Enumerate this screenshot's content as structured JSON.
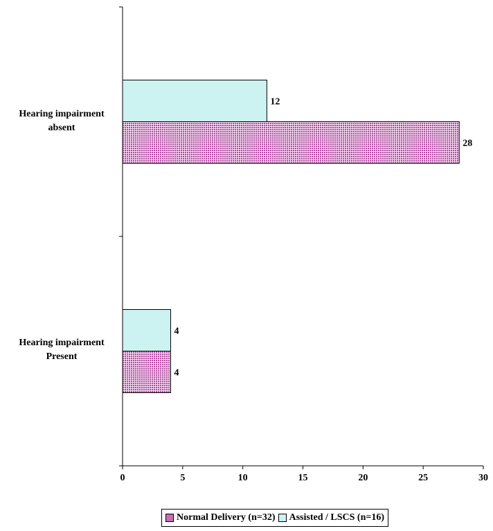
{
  "chart_data": {
    "type": "bar",
    "orientation": "horizontal",
    "categories": [
      "Hearing impairment absent",
      "Hearing impairment Present"
    ],
    "category_labels": [
      "Hearing impairment\nabsent",
      "Hearing impairment\nPresent"
    ],
    "series": [
      {
        "name": "Normal Delivery (n=32)",
        "values": [
          28,
          4
        ],
        "color": "#c46fb6",
        "pattern": "crosshatch"
      },
      {
        "name": "Assisted / LSCS (n=16)",
        "values": [
          12,
          4
        ],
        "color": "#ccf2f2"
      }
    ],
    "xlim": [
      0,
      30
    ],
    "x_ticks": [
      0,
      5,
      10,
      15,
      20,
      25,
      30
    ],
    "data_labels": true,
    "grid": false,
    "legend_position": "bottom"
  }
}
